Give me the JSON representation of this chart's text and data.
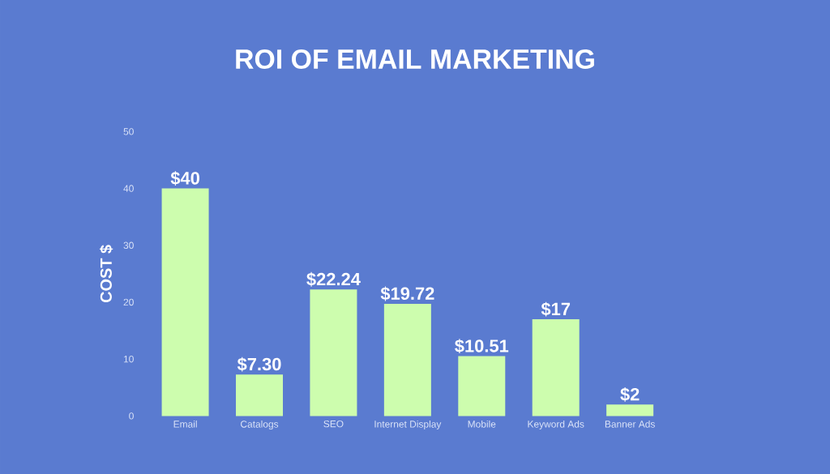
{
  "chart_data": {
    "type": "bar",
    "title": "ROI OF EMAIL MARKETING",
    "ylabel": "COST $",
    "categories": [
      "Email",
      "Catalogs",
      "SEO",
      "Internet Display",
      "Mobile",
      "Keyword Ads",
      "Banner Ads"
    ],
    "values": [
      40,
      7.3,
      22.24,
      19.72,
      10.51,
      17,
      2
    ],
    "value_labels": [
      "$40",
      "$7.30",
      "$22.24",
      "$19.72",
      "$10.51",
      "$17",
      "$2"
    ],
    "color": "#cdfdae",
    "ylim": [
      0,
      50
    ],
    "yticks": [
      0,
      10,
      20,
      30,
      40,
      50
    ]
  }
}
